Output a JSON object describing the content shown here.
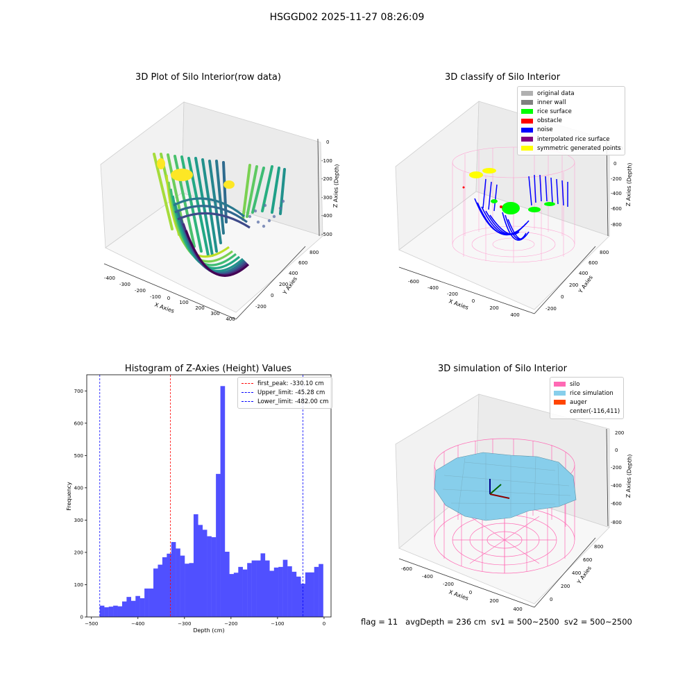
{
  "figure": {
    "title": "HSGGD02 2025-11-27 08:26:09",
    "footer": {
      "flag": "flag = 11",
      "avg_depth": "avgDepth = 236 cm",
      "sv1": "sv1 = 500~2500",
      "sv2": "sv2 = 500~2500"
    }
  },
  "panels": {
    "raw": {
      "title": "3D Plot of Silo Interior(row data)",
      "xlabel": "X Axies",
      "ylabel": "Y Axies",
      "zlabel": "Z Axies (Depth)",
      "xticks": [
        "-400",
        "-300",
        "-200",
        "-100",
        "0",
        "100",
        "200",
        "300",
        "400"
      ],
      "yticks": [
        "-200",
        "0",
        "200",
        "400",
        "600",
        "800"
      ],
      "zticks": [
        "0",
        "-100",
        "-200",
        "-300",
        "-400",
        "-500"
      ]
    },
    "classify": {
      "title": "3D classify of Silo Interior",
      "xlabel": "X Axies",
      "ylabel": "Y Axies",
      "zlabel": "Z Axies (Depth)",
      "xticks": [
        "-600",
        "-400",
        "-200",
        "0",
        "200",
        "400"
      ],
      "yticks": [
        "-200",
        "0",
        "200",
        "400",
        "600",
        "800"
      ],
      "zticks": [
        "200",
        "0",
        "-200",
        "-400",
        "-600",
        "-800"
      ],
      "legend": [
        {
          "label": "original data",
          "color": "#b0b0b0"
        },
        {
          "label": "inner wall",
          "color": "#808080"
        },
        {
          "label": "rice surface",
          "color": "#00ff00"
        },
        {
          "label": "obstacle",
          "color": "#ff0000"
        },
        {
          "label": "noise",
          "color": "#0000ff"
        },
        {
          "label": "interpolated rice surface",
          "color": "#800080"
        },
        {
          "label": "symmetric generated points",
          "color": "#ffff00"
        }
      ]
    },
    "simulation": {
      "title": "3D simulation of Silo Interior",
      "xlabel": "X Axies",
      "ylabel": "Y Axies",
      "zlabel": "Z Axies (Depth)",
      "xticks": [
        "-600",
        "-400",
        "-200",
        "0",
        "200",
        "400"
      ],
      "yticks": [
        "0",
        "200",
        "400",
        "600",
        "800"
      ],
      "zticks": [
        "200",
        "0",
        "-200",
        "-400",
        "-600",
        "-800"
      ],
      "legend": [
        {
          "label": "silo",
          "color": "#ff69b4"
        },
        {
          "label": "rice simulation",
          "color": "#87ceeb"
        },
        {
          "label": "auger",
          "color": "#ff4500"
        },
        {
          "label": "center(-116,411)",
          "color": ""
        }
      ]
    }
  },
  "chart_data": {
    "type": "bar",
    "title": "Histogram of Z-Axies (Height) Values",
    "xlabel": "Depth (cm)",
    "ylabel": "Frequency",
    "xlim": [
      -510,
      15
    ],
    "ylim": [
      0,
      750
    ],
    "xticks": [
      -500,
      -400,
      -300,
      -200,
      -100,
      0
    ],
    "yticks": [
      0,
      100,
      200,
      300,
      400,
      500,
      600,
      700
    ],
    "bar_color": "#5050ff",
    "bin_start": -482,
    "bin_width": 9.6,
    "values": [
      35,
      30,
      32,
      35,
      33,
      48,
      62,
      50,
      65,
      58,
      88,
      88,
      150,
      162,
      185,
      196,
      232,
      212,
      190,
      165,
      167,
      318,
      285,
      270,
      250,
      247,
      443,
      715,
      202,
      133,
      137,
      155,
      147,
      167,
      175,
      175,
      197,
      175,
      143,
      153,
      155,
      177,
      157,
      140,
      125,
      103,
      138,
      138,
      155,
      164
    ],
    "lines": [
      {
        "label": "first_peak: -330.10 cm",
        "x": -330.1,
        "color": "#ff0000"
      },
      {
        "label": "Upper_limit: -45.28 cm",
        "x": -45.28,
        "color": "#0000ff"
      },
      {
        "label": "Lower_limit: -482.00 cm",
        "x": -482.0,
        "color": "#0000ff"
      }
    ],
    "legend_position": "upper right"
  }
}
